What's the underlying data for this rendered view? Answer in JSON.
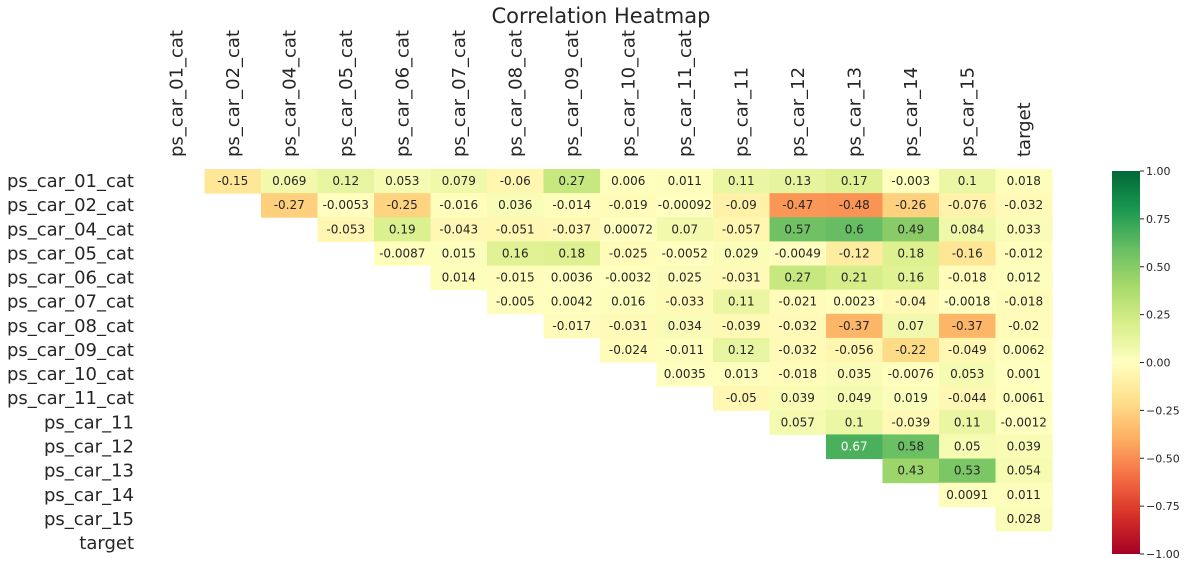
{
  "chart_data": {
    "type": "heatmap",
    "title": "Correlation Heatmap",
    "labels": [
      "ps_car_01_cat",
      "ps_car_02_cat",
      "ps_car_04_cat",
      "ps_car_05_cat",
      "ps_car_06_cat",
      "ps_car_07_cat",
      "ps_car_08_cat",
      "ps_car_09_cat",
      "ps_car_10_cat",
      "ps_car_11_cat",
      "ps_car_11",
      "ps_car_12",
      "ps_car_13",
      "ps_car_14",
      "ps_car_15",
      "target"
    ],
    "values": [
      [
        null,
        "-0.15",
        "0.069",
        "0.12",
        "0.053",
        "0.079",
        "-0.06",
        "0.27",
        "0.006",
        "0.011",
        "0.11",
        "0.13",
        "0.17",
        "-0.003",
        "0.1",
        "0.018"
      ],
      [
        null,
        null,
        "-0.27",
        "-0.0053",
        "-0.25",
        "-0.016",
        "0.036",
        "-0.014",
        "-0.019",
        "-0.00092",
        "-0.09",
        "-0.47",
        "-0.48",
        "-0.26",
        "-0.076",
        "-0.032"
      ],
      [
        null,
        null,
        null,
        "-0.053",
        "0.19",
        "-0.043",
        "-0.051",
        "-0.037",
        "0.00072",
        "0.07",
        "-0.057",
        "0.57",
        "0.6",
        "0.49",
        "0.084",
        "0.033"
      ],
      [
        null,
        null,
        null,
        null,
        "-0.0087",
        "0.015",
        "0.16",
        "0.18",
        "-0.025",
        "-0.0052",
        "0.029",
        "-0.0049",
        "-0.12",
        "0.18",
        "-0.16",
        "-0.012"
      ],
      [
        null,
        null,
        null,
        null,
        null,
        "0.014",
        "-0.015",
        "0.0036",
        "-0.0032",
        "0.025",
        "-0.031",
        "0.27",
        "0.21",
        "0.16",
        "-0.018",
        "0.012"
      ],
      [
        null,
        null,
        null,
        null,
        null,
        null,
        "-0.005",
        "0.0042",
        "0.016",
        "-0.033",
        "0.11",
        "-0.021",
        "0.0023",
        "-0.04",
        "-0.0018",
        "-0.018"
      ],
      [
        null,
        null,
        null,
        null,
        null,
        null,
        null,
        "-0.017",
        "-0.031",
        "0.034",
        "-0.039",
        "-0.032",
        "-0.37",
        "0.07",
        "-0.37",
        "-0.02"
      ],
      [
        null,
        null,
        null,
        null,
        null,
        null,
        null,
        null,
        "-0.024",
        "-0.011",
        "0.12",
        "-0.032",
        "-0.056",
        "-0.22",
        "-0.049",
        "0.0062"
      ],
      [
        null,
        null,
        null,
        null,
        null,
        null,
        null,
        null,
        null,
        "0.0035",
        "0.013",
        "-0.018",
        "0.035",
        "-0.0076",
        "0.053",
        "0.001"
      ],
      [
        null,
        null,
        null,
        null,
        null,
        null,
        null,
        null,
        null,
        null,
        "-0.05",
        "0.039",
        "0.049",
        "0.019",
        "-0.044",
        "0.0061"
      ],
      [
        null,
        null,
        null,
        null,
        null,
        null,
        null,
        null,
        null,
        null,
        null,
        "0.057",
        "0.1",
        "-0.039",
        "0.11",
        "-0.0012"
      ],
      [
        null,
        null,
        null,
        null,
        null,
        null,
        null,
        null,
        null,
        null,
        null,
        null,
        "0.67",
        "0.58",
        "0.05",
        "0.039"
      ],
      [
        null,
        null,
        null,
        null,
        null,
        null,
        null,
        null,
        null,
        null,
        null,
        null,
        null,
        "0.43",
        "0.53",
        "0.054"
      ],
      [
        null,
        null,
        null,
        null,
        null,
        null,
        null,
        null,
        null,
        null,
        null,
        null,
        null,
        null,
        "0.0091",
        "0.011"
      ],
      [
        null,
        null,
        null,
        null,
        null,
        null,
        null,
        null,
        null,
        null,
        null,
        null,
        null,
        null,
        null,
        "0.028"
      ],
      [
        null,
        null,
        null,
        null,
        null,
        null,
        null,
        null,
        null,
        null,
        null,
        null,
        null,
        null,
        null,
        null
      ]
    ],
    "colormap": "RdYlGn",
    "vmin": -1.0,
    "vmax": 1.0,
    "colorbar_ticks": [
      "1.00",
      "0.75",
      "0.50",
      "0.25",
      "0.00",
      "−0.25",
      "−0.50",
      "−0.75",
      "−1.00"
    ],
    "grid": false
  }
}
